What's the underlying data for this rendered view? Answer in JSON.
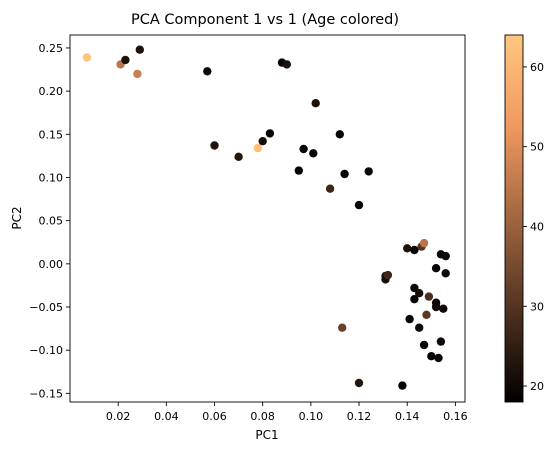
{
  "chart_data": {
    "type": "scatter",
    "title": "PCA Component 1 vs 1 (Age colored)",
    "xlabel": "PC1",
    "ylabel": "PC2",
    "xlim": [
      0.0,
      0.164
    ],
    "ylim": [
      -0.16,
      0.265
    ],
    "xticks": [
      0.02,
      0.04,
      0.06,
      0.08,
      0.1,
      0.12,
      0.14,
      0.16
    ],
    "yticks": [
      -0.15,
      -0.1,
      -0.05,
      0.0,
      0.05,
      0.1,
      0.15,
      0.2,
      0.25
    ],
    "xtick_labels": [
      "0.02",
      "0.04",
      "0.06",
      "0.08",
      "0.10",
      "0.12",
      "0.14",
      "0.16"
    ],
    "ytick_labels": [
      "−0.15",
      "−0.10",
      "−0.05",
      "0.00",
      "0.05",
      "0.10",
      "0.15",
      "0.20",
      "0.25"
    ],
    "grid": false,
    "legend": "none",
    "colorbar": {
      "cmap": "copper",
      "min": 18,
      "max": 64,
      "ticks": [
        20,
        30,
        40,
        50,
        60
      ],
      "tick_labels": [
        "20",
        "30",
        "40",
        "50",
        "60"
      ]
    },
    "points": [
      {
        "x": 0.007,
        "y": 0.239,
        "c": 63
      },
      {
        "x": 0.021,
        "y": 0.231,
        "c": 45
      },
      {
        "x": 0.023,
        "y": 0.236,
        "c": 22
      },
      {
        "x": 0.028,
        "y": 0.22,
        "c": 47
      },
      {
        "x": 0.029,
        "y": 0.248,
        "c": 22
      },
      {
        "x": 0.057,
        "y": 0.223,
        "c": 20
      },
      {
        "x": 0.06,
        "y": 0.137,
        "c": 22
      },
      {
        "x": 0.07,
        "y": 0.124,
        "c": 23
      },
      {
        "x": 0.078,
        "y": 0.134,
        "c": 62
      },
      {
        "x": 0.08,
        "y": 0.142,
        "c": 21
      },
      {
        "x": 0.083,
        "y": 0.151,
        "c": 19
      },
      {
        "x": 0.088,
        "y": 0.233,
        "c": 19
      },
      {
        "x": 0.09,
        "y": 0.231,
        "c": 22
      },
      {
        "x": 0.095,
        "y": 0.108,
        "c": 19
      },
      {
        "x": 0.097,
        "y": 0.133,
        "c": 19
      },
      {
        "x": 0.101,
        "y": 0.128,
        "c": 19
      },
      {
        "x": 0.102,
        "y": 0.186,
        "c": 22
      },
      {
        "x": 0.108,
        "y": 0.087,
        "c": 27
      },
      {
        "x": 0.112,
        "y": 0.15,
        "c": 19
      },
      {
        "x": 0.113,
        "y": -0.074,
        "c": 33
      },
      {
        "x": 0.114,
        "y": 0.104,
        "c": 19
      },
      {
        "x": 0.12,
        "y": 0.068,
        "c": 19
      },
      {
        "x": 0.12,
        "y": -0.138,
        "c": 23
      },
      {
        "x": 0.124,
        "y": 0.107,
        "c": 20
      },
      {
        "x": 0.131,
        "y": -0.014,
        "c": 24
      },
      {
        "x": 0.131,
        "y": -0.018,
        "c": 21
      },
      {
        "x": 0.132,
        "y": -0.013,
        "c": 27
      },
      {
        "x": 0.138,
        "y": -0.141,
        "c": 19
      },
      {
        "x": 0.14,
        "y": 0.018,
        "c": 22
      },
      {
        "x": 0.141,
        "y": -0.064,
        "c": 19
      },
      {
        "x": 0.143,
        "y": 0.016,
        "c": 19
      },
      {
        "x": 0.143,
        "y": -0.028,
        "c": 20
      },
      {
        "x": 0.143,
        "y": -0.041,
        "c": 19
      },
      {
        "x": 0.145,
        "y": -0.034,
        "c": 21
      },
      {
        "x": 0.145,
        "y": -0.074,
        "c": 20
      },
      {
        "x": 0.146,
        "y": 0.02,
        "c": 30
      },
      {
        "x": 0.147,
        "y": 0.024,
        "c": 45
      },
      {
        "x": 0.147,
        "y": -0.094,
        "c": 19
      },
      {
        "x": 0.148,
        "y": -0.059,
        "c": 31
      },
      {
        "x": 0.149,
        "y": -0.038,
        "c": 29
      },
      {
        "x": 0.15,
        "y": -0.107,
        "c": 19
      },
      {
        "x": 0.152,
        "y": -0.005,
        "c": 19
      },
      {
        "x": 0.152,
        "y": -0.045,
        "c": 19
      },
      {
        "x": 0.152,
        "y": -0.05,
        "c": 20
      },
      {
        "x": 0.153,
        "y": -0.109,
        "c": 20
      },
      {
        "x": 0.154,
        "y": 0.011,
        "c": 19
      },
      {
        "x": 0.154,
        "y": -0.09,
        "c": 20
      },
      {
        "x": 0.155,
        "y": -0.052,
        "c": 20
      },
      {
        "x": 0.156,
        "y": -0.011,
        "c": 20
      },
      {
        "x": 0.156,
        "y": 0.009,
        "c": 20
      }
    ]
  }
}
